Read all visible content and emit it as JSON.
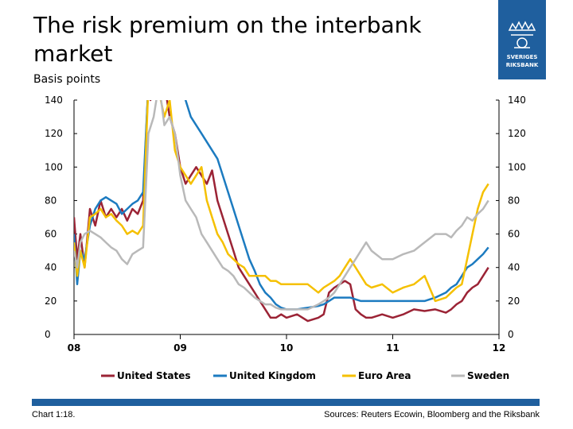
{
  "header": {
    "title": "The risk premium on the interbank market",
    "subtitle": "Basis points"
  },
  "logo": {
    "brand_lines": [
      "SVERIGES",
      "RIKSBANK"
    ],
    "color": "#1f5f9e"
  },
  "footer": {
    "chart_number": "Chart 1:18.",
    "sources": "Sources: Reuters Ecowin, Bloomberg and the Riksbank",
    "bar_color": "#1f5f9e"
  },
  "chart_data": {
    "type": "line",
    "title": "The risk premium on the interbank market",
    "ylabel": "Basis points",
    "ylim": [
      0,
      140
    ],
    "yticks": [
      0,
      20,
      40,
      60,
      80,
      100,
      120,
      140
    ],
    "xlim": [
      2008.0,
      2012.0
    ],
    "xticks": [
      {
        "value": 2008,
        "label": "08"
      },
      {
        "value": 2009,
        "label": "09"
      },
      {
        "value": 2010,
        "label": "10"
      },
      {
        "value": 2011,
        "label": "11"
      },
      {
        "value": 2012,
        "label": "12"
      }
    ],
    "dual_y_axis": true,
    "grid": false,
    "legend_position": "bottom",
    "series": [
      {
        "name": "United States",
        "color": "#9b2335",
        "x": [
          2008.0,
          2008.03,
          2008.06,
          2008.1,
          2008.15,
          2008.2,
          2008.25,
          2008.3,
          2008.35,
          2008.4,
          2008.45,
          2008.5,
          2008.55,
          2008.6,
          2008.65,
          2008.7,
          2008.72,
          2008.75,
          2008.8,
          2008.85,
          2008.9,
          2008.95,
          2009.0,
          2009.05,
          2009.1,
          2009.15,
          2009.2,
          2009.25,
          2009.3,
          2009.35,
          2009.4,
          2009.45,
          2009.5,
          2009.55,
          2009.6,
          2009.65,
          2009.7,
          2009.75,
          2009.8,
          2009.85,
          2009.9,
          2009.95,
          2010.0,
          2010.1,
          2010.2,
          2010.3,
          2010.35,
          2010.4,
          2010.45,
          2010.5,
          2010.55,
          2010.6,
          2010.65,
          2010.7,
          2010.75,
          2010.8,
          2010.9,
          2011.0,
          2011.1,
          2011.2,
          2011.3,
          2011.4,
          2011.5,
          2011.55,
          2011.6,
          2011.65,
          2011.7,
          2011.75,
          2011.8,
          2011.85,
          2011.9
        ],
        "values": [
          70,
          45,
          60,
          40,
          75,
          65,
          80,
          70,
          75,
          70,
          75,
          68,
          75,
          72,
          80,
          150,
          140,
          160,
          145,
          150,
          130,
          120,
          100,
          90,
          95,
          100,
          95,
          90,
          98,
          80,
          70,
          60,
          50,
          40,
          35,
          30,
          25,
          20,
          15,
          10,
          10,
          12,
          10,
          12,
          8,
          10,
          12,
          25,
          28,
          30,
          32,
          30,
          15,
          12,
          10,
          10,
          12,
          10,
          12,
          15,
          14,
          15,
          13,
          15,
          18,
          20,
          25,
          28,
          30,
          35,
          40
        ]
      },
      {
        "name": "United Kingdom",
        "color": "#1c7bc0",
        "x": [
          2008.0,
          2008.03,
          2008.06,
          2008.1,
          2008.15,
          2008.2,
          2008.25,
          2008.3,
          2008.35,
          2008.4,
          2008.45,
          2008.5,
          2008.55,
          2008.6,
          2008.65,
          2008.7,
          2008.75,
          2008.8,
          2008.85,
          2008.9,
          2008.95,
          2009.0,
          2009.05,
          2009.1,
          2009.15,
          2009.2,
          2009.25,
          2009.3,
          2009.35,
          2009.4,
          2009.45,
          2009.5,
          2009.55,
          2009.6,
          2009.65,
          2009.7,
          2009.75,
          2009.8,
          2009.85,
          2009.9,
          2009.95,
          2010.0,
          2010.1,
          2010.2,
          2010.3,
          2010.35,
          2010.4,
          2010.45,
          2010.5,
          2010.55,
          2010.6,
          2010.65,
          2010.7,
          2010.75,
          2010.8,
          2010.9,
          2011.0,
          2011.1,
          2011.2,
          2011.3,
          2011.4,
          2011.5,
          2011.55,
          2011.6,
          2011.65,
          2011.7,
          2011.75,
          2011.8,
          2011.85,
          2011.9
        ],
        "values": [
          60,
          30,
          50,
          45,
          65,
          75,
          80,
          82,
          80,
          78,
          72,
          75,
          78,
          80,
          85,
          150,
          155,
          160,
          150,
          145,
          150,
          150,
          140,
          130,
          125,
          120,
          115,
          110,
          105,
          95,
          85,
          75,
          65,
          55,
          45,
          38,
          30,
          25,
          22,
          18,
          16,
          15,
          15,
          16,
          17,
          18,
          20,
          22,
          22,
          22,
          22,
          21,
          20,
          20,
          20,
          20,
          20,
          20,
          20,
          20,
          22,
          25,
          28,
          30,
          35,
          40,
          42,
          45,
          48,
          52
        ]
      },
      {
        "name": "Euro Area",
        "color": "#f5c000",
        "x": [
          2008.0,
          2008.03,
          2008.06,
          2008.1,
          2008.15,
          2008.2,
          2008.25,
          2008.3,
          2008.35,
          2008.4,
          2008.45,
          2008.5,
          2008.55,
          2008.6,
          2008.65,
          2008.7,
          2008.75,
          2008.8,
          2008.85,
          2008.9,
          2008.95,
          2009.0,
          2009.05,
          2009.1,
          2009.15,
          2009.2,
          2009.25,
          2009.3,
          2009.35,
          2009.4,
          2009.45,
          2009.5,
          2009.55,
          2009.6,
          2009.65,
          2009.7,
          2009.75,
          2009.8,
          2009.85,
          2009.9,
          2009.95,
          2010.0,
          2010.1,
          2010.2,
          2010.3,
          2010.35,
          2010.4,
          2010.45,
          2010.5,
          2010.55,
          2010.6,
          2010.65,
          2010.7,
          2010.75,
          2010.8,
          2010.9,
          2011.0,
          2011.1,
          2011.2,
          2011.3,
          2011.4,
          2011.5,
          2011.55,
          2011.6,
          2011.65,
          2011.7,
          2011.75,
          2011.8,
          2011.85,
          2011.9
        ],
        "values": [
          55,
          35,
          50,
          40,
          70,
          72,
          75,
          70,
          72,
          68,
          65,
          60,
          62,
          60,
          65,
          150,
          155,
          145,
          130,
          140,
          110,
          100,
          95,
          90,
          95,
          100,
          80,
          70,
          60,
          55,
          48,
          45,
          42,
          40,
          35,
          35,
          35,
          35,
          32,
          32,
          30,
          30,
          30,
          30,
          25,
          28,
          30,
          32,
          35,
          40,
          45,
          40,
          35,
          30,
          28,
          30,
          25,
          28,
          30,
          35,
          20,
          22,
          25,
          28,
          30,
          45,
          60,
          75,
          85,
          90
        ]
      },
      {
        "name": "Sweden",
        "color": "#b9b9b9",
        "x": [
          2008.0,
          2008.03,
          2008.06,
          2008.1,
          2008.15,
          2008.2,
          2008.25,
          2008.3,
          2008.35,
          2008.4,
          2008.45,
          2008.5,
          2008.55,
          2008.6,
          2008.65,
          2008.7,
          2008.75,
          2008.8,
          2008.85,
          2008.9,
          2008.95,
          2009.0,
          2009.05,
          2009.1,
          2009.15,
          2009.2,
          2009.25,
          2009.3,
          2009.35,
          2009.4,
          2009.45,
          2009.5,
          2009.55,
          2009.6,
          2009.65,
          2009.7,
          2009.75,
          2009.8,
          2009.85,
          2009.9,
          2009.95,
          2010.0,
          2010.1,
          2010.2,
          2010.3,
          2010.35,
          2010.4,
          2010.45,
          2010.5,
          2010.55,
          2010.6,
          2010.65,
          2010.7,
          2010.75,
          2010.8,
          2010.9,
          2011.0,
          2011.1,
          2011.2,
          2011.3,
          2011.4,
          2011.5,
          2011.55,
          2011.6,
          2011.65,
          2011.7,
          2011.75,
          2011.8,
          2011.85,
          2011.9
        ],
        "values": [
          50,
          40,
          55,
          60,
          62,
          60,
          58,
          55,
          52,
          50,
          45,
          42,
          48,
          50,
          52,
          120,
          130,
          150,
          125,
          130,
          120,
          95,
          80,
          75,
          70,
          60,
          55,
          50,
          45,
          40,
          38,
          35,
          30,
          28,
          25,
          22,
          20,
          18,
          18,
          16,
          15,
          15,
          15,
          15,
          18,
          20,
          22,
          25,
          30,
          35,
          40,
          45,
          50,
          55,
          50,
          45,
          45,
          48,
          50,
          55,
          60,
          60,
          58,
          62,
          65,
          70,
          68,
          72,
          75,
          80
        ]
      }
    ]
  }
}
